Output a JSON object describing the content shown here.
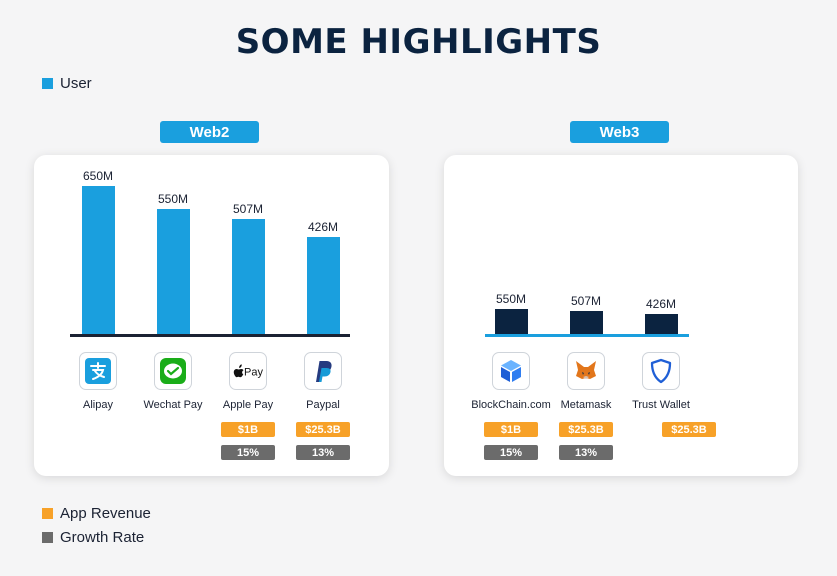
{
  "title": "SOME HIGHLIGHTS",
  "legend": {
    "user": "User",
    "app_revenue": "App Revenue",
    "growth_rate": "Growth Rate"
  },
  "colors": {
    "web2_bar": "#1a9fde",
    "web3_bar": "#0b2340",
    "revenue": "#f7a128",
    "growth": "#6b6b6b",
    "label_bg": "#1a9fde"
  },
  "chart_data": [
    {
      "type": "bar",
      "group": "Web2",
      "categories": [
        "Alipay",
        "Wechat Pay",
        "Apple Pay",
        "Paypal"
      ],
      "series": [
        {
          "name": "User",
          "values": [
            650,
            550,
            507,
            426
          ]
        }
      ],
      "value_labels": [
        "650M",
        "550M",
        "507M",
        "426M"
      ],
      "app_revenue": [
        "",
        "",
        "$1B",
        "$25.3B"
      ],
      "growth_rate": [
        "",
        "",
        "15%",
        "13%"
      ],
      "icons": [
        "alipay-icon",
        "wechat-pay-icon",
        "apple-pay-icon",
        "paypal-icon"
      ],
      "ylim": [
        0,
        650
      ]
    },
    {
      "type": "bar",
      "group": "Web3",
      "categories": [
        "BlockChain.com",
        "Metamask",
        "Trust Wallet"
      ],
      "series": [
        {
          "name": "User",
          "values": [
            550,
            507,
            426
          ]
        }
      ],
      "value_labels": [
        "550M",
        "507M",
        "426M"
      ],
      "app_revenue": [
        "$1B",
        "$25.3B",
        "$25.3B"
      ],
      "growth_rate": [
        "15%",
        "13%",
        ""
      ],
      "icons": [
        "blockchain-com-icon",
        "metamask-icon",
        "trust-wallet-icon"
      ]
    }
  ]
}
